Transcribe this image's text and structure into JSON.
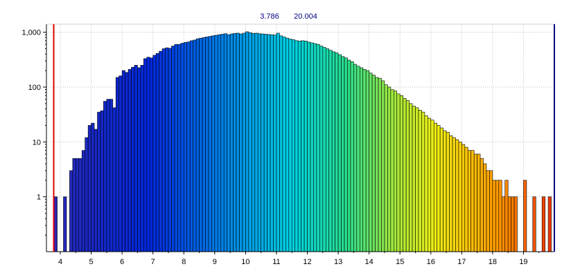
{
  "chart_data": {
    "type": "bar",
    "title": "",
    "xlabel": "",
    "ylabel": "",
    "y_scale": "log",
    "ylim": [
      0.1,
      1400
    ],
    "xlim": [
      3.55,
      20.0
    ],
    "grid": true,
    "range_labels": [
      "3.786",
      "20.004"
    ],
    "marker_x": 3.786,
    "x_ticks": [
      "4",
      "5",
      "6",
      "7",
      "8",
      "9",
      "10",
      "11",
      "12",
      "13",
      "14",
      "15",
      "16",
      "17",
      "18",
      "19"
    ],
    "y_ticks": [
      {
        "value": 1,
        "label": "1"
      },
      {
        "value": 10,
        "label": "10"
      },
      {
        "value": 100,
        "label": "100"
      },
      {
        "value": 1000,
        "label": "1,000"
      }
    ],
    "bin_width": 0.1,
    "bin_start": 3.8,
    "counts": [
      1,
      0,
      0,
      1,
      0,
      3,
      5,
      5,
      5,
      7,
      12,
      20,
      22,
      17,
      35,
      37,
      55,
      60,
      60,
      42,
      150,
      160,
      200,
      185,
      210,
      230,
      250,
      225,
      250,
      330,
      350,
      340,
      380,
      410,
      450,
      500,
      520,
      510,
      560,
      600,
      600,
      630,
      650,
      665,
      700,
      720,
      760,
      780,
      800,
      820,
      840,
      860,
      880,
      900,
      920,
      940,
      900,
      930,
      950,
      960,
      930,
      960,
      1020,
      980,
      950,
      960,
      940,
      930,
      920,
      910,
      900,
      890,
      960,
      860,
      820,
      780,
      750,
      730,
      700,
      690,
      700,
      690,
      660,
      640,
      620,
      600,
      560,
      530,
      500,
      470,
      440,
      420,
      390,
      360,
      340,
      310,
      290,
      260,
      240,
      225,
      210,
      200,
      180,
      165,
      150,
      145,
      130,
      110,
      100,
      90,
      85,
      75,
      70,
      62,
      57,
      50,
      45,
      42,
      38,
      35,
      30,
      27,
      25,
      22,
      20,
      18,
      16,
      15,
      13,
      12,
      11,
      10,
      9,
      8,
      7,
      7,
      6,
      6,
      5,
      4,
      3,
      3,
      2,
      2,
      2,
      1,
      2,
      1,
      1,
      1,
      0,
      0,
      2,
      0,
      0,
      1,
      0,
      0,
      1,
      0,
      1,
      0,
      0,
      0,
      0,
      0,
      0,
      0,
      0,
      0,
      0,
      1
    ]
  }
}
